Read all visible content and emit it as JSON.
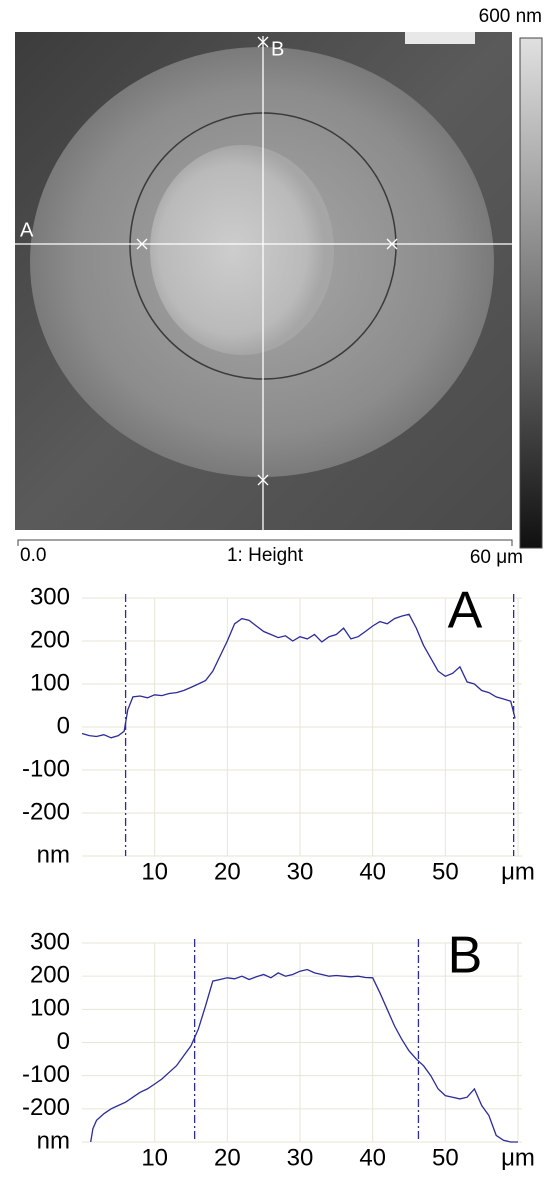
{
  "image": {
    "scale_max": "600 nm",
    "line_a": "A",
    "line_b": "B",
    "axis_start": "0.0",
    "channel": "1: Height",
    "axis_end": "60 μm"
  },
  "chart_data": [
    {
      "type": "line",
      "annotation": "A",
      "color": "#2b2b9a",
      "x": [
        0,
        1,
        2,
        3,
        4,
        5,
        5.8,
        6.3,
        7,
        8,
        9,
        10,
        11,
        12,
        13,
        14,
        15,
        16,
        17,
        18,
        19,
        20,
        21,
        22,
        23,
        24,
        25,
        26,
        27,
        28,
        29,
        30,
        31,
        32,
        33,
        34,
        35,
        36,
        37,
        38,
        39,
        40,
        41,
        42,
        43,
        44,
        45,
        46,
        47,
        48,
        49,
        50,
        51,
        52,
        53,
        54,
        55,
        56,
        57,
        58,
        59,
        59.6
      ],
      "values": [
        -15,
        -20,
        -22,
        -18,
        -25,
        -20,
        -10,
        40,
        70,
        72,
        68,
        75,
        73,
        78,
        80,
        85,
        92,
        100,
        108,
        130,
        165,
        200,
        240,
        252,
        248,
        235,
        222,
        215,
        208,
        212,
        200,
        210,
        205,
        215,
        198,
        210,
        215,
        230,
        205,
        210,
        222,
        235,
        245,
        240,
        252,
        258,
        262,
        230,
        190,
        160,
        130,
        118,
        125,
        140,
        105,
        100,
        85,
        80,
        70,
        65,
        60,
        20
      ],
      "cursors": [
        6.0,
        59.4
      ],
      "xlim": [
        0,
        60
      ],
      "xticks": [
        10,
        20,
        30,
        40,
        50,
        {
          "value": 60,
          "label": "μm"
        }
      ],
      "ylim": [
        -300,
        300
      ],
      "yticks": [
        {
          "value": -300,
          "label": "nm"
        },
        -200,
        -100,
        0,
        100,
        200,
        300
      ],
      "grid": true
    },
    {
      "type": "line",
      "annotation": "B",
      "color": "#2b2b9a",
      "x": [
        1.2,
        1.5,
        2,
        3,
        4,
        5,
        6,
        7,
        8,
        9,
        10,
        11,
        12,
        13,
        14,
        15,
        16,
        17,
        18,
        19,
        20,
        21,
        22,
        23,
        24,
        25,
        26,
        27,
        28,
        29,
        30,
        31,
        32,
        33,
        34,
        35,
        36,
        37,
        38,
        39,
        40,
        41,
        42,
        43,
        44,
        45,
        46,
        47,
        48,
        49,
        50,
        51,
        52,
        53,
        54,
        55,
        56,
        57,
        58,
        59,
        60
      ],
      "values": [
        -300,
        -260,
        -235,
        -215,
        -200,
        -190,
        -180,
        -165,
        -150,
        -140,
        -125,
        -110,
        -90,
        -70,
        -40,
        -10,
        40,
        110,
        185,
        190,
        195,
        192,
        200,
        190,
        198,
        205,
        195,
        210,
        200,
        205,
        215,
        220,
        210,
        205,
        200,
        202,
        200,
        198,
        200,
        196,
        195,
        150,
        100,
        50,
        10,
        -25,
        -50,
        -70,
        -100,
        -140,
        -160,
        -165,
        -170,
        -165,
        -140,
        -190,
        -220,
        -280,
        -295,
        -300,
        -300
      ],
      "cursors": [
        15.5,
        46.3
      ],
      "xlim": [
        0,
        60
      ],
      "xticks": [
        10,
        20,
        30,
        40,
        50,
        {
          "value": 60,
          "label": "μm"
        }
      ],
      "ylim": [
        -300,
        300
      ],
      "yticks": [
        {
          "value": -300,
          "label": "nm"
        },
        -200,
        -100,
        0,
        100,
        200,
        300
      ],
      "grid": true
    }
  ]
}
